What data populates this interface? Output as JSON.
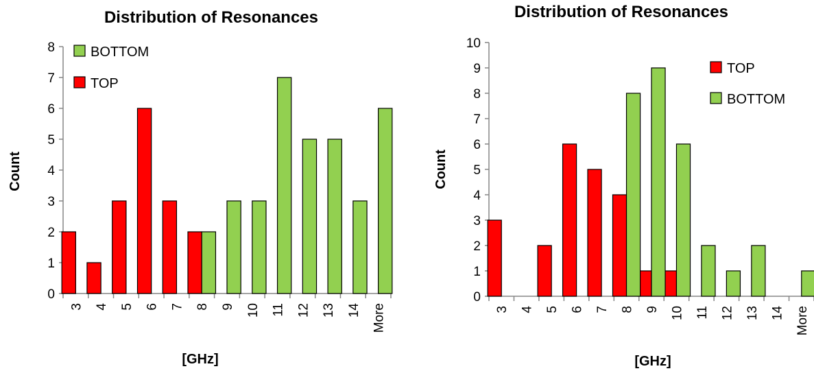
{
  "colors": {
    "top": "#ff0000",
    "bottom": "#92d050",
    "axis": "#868686"
  },
  "chart_data": [
    {
      "type": "bar",
      "title": "Distribution of Resonances",
      "xlabel": "[GHz]",
      "ylabel": "Count",
      "ylim": [
        0,
        8
      ],
      "yticks": [
        "0",
        "1",
        "2",
        "3",
        "4",
        "5",
        "6",
        "7",
        "8"
      ],
      "categories": [
        "3",
        "4",
        "5",
        "6",
        "7",
        "8",
        "9",
        "10",
        "11",
        "12",
        "13",
        "14",
        "More"
      ],
      "legend": [
        "BOTTOM",
        "TOP"
      ],
      "legend_position": "top-left",
      "series": [
        {
          "name": "TOP",
          "values": [
            2,
            1,
            3,
            6,
            3,
            2,
            0,
            0,
            0,
            0,
            0,
            0,
            0
          ]
        },
        {
          "name": "BOTTOM",
          "values": [
            0,
            0,
            0,
            0,
            0,
            2,
            3,
            3,
            7,
            5,
            5,
            3,
            6
          ]
        }
      ]
    },
    {
      "type": "bar",
      "title": "Distribution of Resonances",
      "xlabel": "[GHz]",
      "ylabel": "Count",
      "ylim": [
        0,
        10
      ],
      "yticks": [
        "0",
        "1",
        "2",
        "3",
        "4",
        "5",
        "6",
        "7",
        "8",
        "9",
        "10"
      ],
      "categories": [
        "3",
        "4",
        "5",
        "6",
        "7",
        "8",
        "9",
        "10",
        "11",
        "12",
        "13",
        "14",
        "More"
      ],
      "legend": [
        "TOP",
        "BOTTOM"
      ],
      "legend_position": "top-right",
      "series": [
        {
          "name": "TOP",
          "values": [
            3,
            0,
            2,
            6,
            5,
            4,
            1,
            1,
            0,
            0,
            0,
            0,
            0
          ]
        },
        {
          "name": "BOTTOM",
          "values": [
            0,
            0,
            0,
            0,
            0,
            8,
            9,
            6,
            2,
            1,
            2,
            0,
            1
          ]
        }
      ]
    }
  ]
}
